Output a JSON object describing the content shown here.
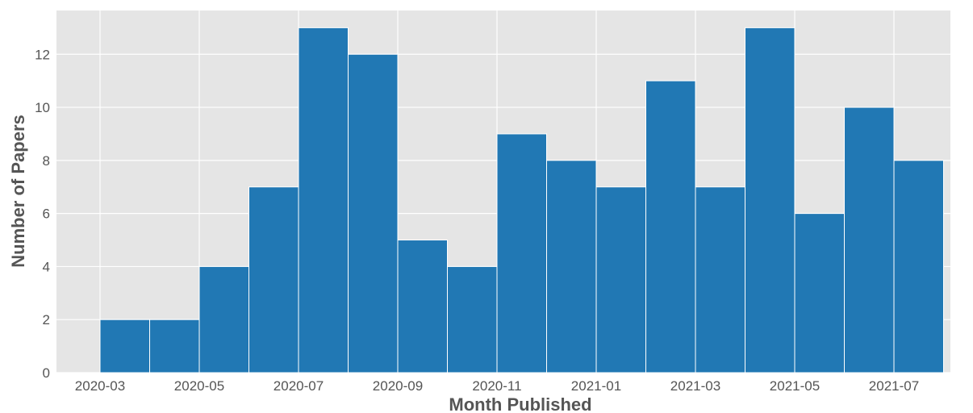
{
  "chart_data": {
    "type": "bar",
    "title": "",
    "xlabel": "Month Published",
    "ylabel": "Number of Papers",
    "categories": [
      "2020-03",
      "2020-04",
      "2020-05",
      "2020-06",
      "2020-07",
      "2020-08",
      "2020-09",
      "2020-10",
      "2020-11",
      "2020-12",
      "2021-01",
      "2021-02",
      "2021-03",
      "2021-04",
      "2021-05",
      "2021-06",
      "2021-07"
    ],
    "values": [
      2,
      2,
      4,
      7,
      13,
      12,
      5,
      4,
      9,
      8,
      7,
      11,
      7,
      13,
      6,
      10,
      8
    ],
    "xticks": [
      "2020-03",
      "2020-05",
      "2020-07",
      "2020-09",
      "2020-11",
      "2021-01",
      "2021-03",
      "2021-05",
      "2021-07"
    ],
    "yticks": [
      0,
      2,
      4,
      6,
      8,
      10,
      12
    ],
    "ylim": [
      0,
      13.65
    ],
    "grid": true,
    "colors": {
      "bar": "#2178b4",
      "bar_edge": "#ffffff",
      "plot_background": "#e5e5e5",
      "grid": "#ffffff",
      "text": "#555555"
    }
  }
}
